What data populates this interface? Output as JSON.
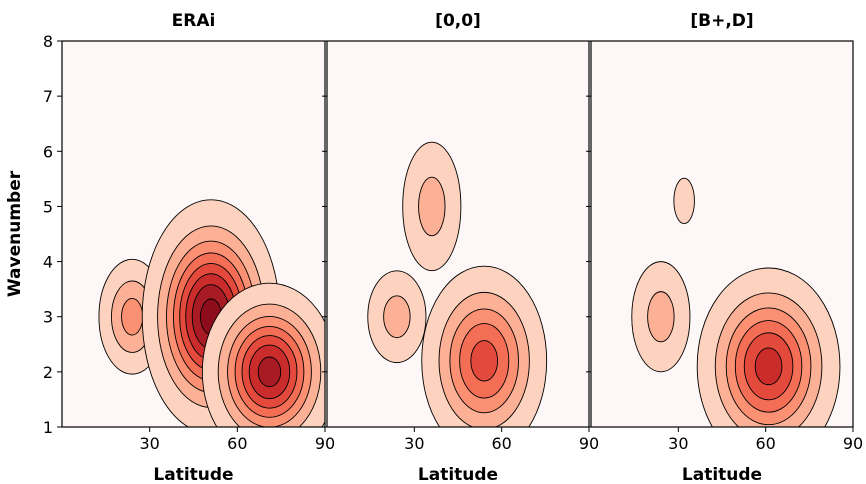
{
  "chart_data": [
    {
      "type": "contour",
      "title": "ERAi",
      "xlabel": "Latitude",
      "ylabel": "Wavenumber",
      "xlim": [
        0,
        90
      ],
      "ylim": [
        1,
        8
      ],
      "xticks": [
        "30",
        "60",
        "90"
      ],
      "yticks": [
        "1",
        "2",
        "3",
        "4",
        "5",
        "6",
        "7",
        "8"
      ],
      "peaks": [
        {
          "lat": 24,
          "wavenumber": 3.0,
          "levels": 3,
          "sx": 6,
          "sy": 0.55
        },
        {
          "lat": 51,
          "wavenumber": 3.0,
          "levels": 8,
          "sx": 10,
          "sy": 0.9
        },
        {
          "lat": 71,
          "wavenumber": 2.0,
          "levels": 7,
          "sx": 10,
          "sy": 0.7
        }
      ]
    },
    {
      "type": "contour",
      "title": "[0,0]",
      "xlabel": "Latitude",
      "ylabel": "",
      "xlim": [
        0,
        90
      ],
      "ylim": [
        1,
        8
      ],
      "xticks": [
        "30",
        "60",
        "90"
      ],
      "yticks": [],
      "peaks": [
        {
          "lat": 36,
          "wavenumber": 5.0,
          "levels": 2,
          "sx": 6,
          "sy": 0.7
        },
        {
          "lat": 24,
          "wavenumber": 3.0,
          "levels": 2,
          "sx": 6,
          "sy": 0.5
        },
        {
          "lat": 54,
          "wavenumber": 2.2,
          "levels": 5,
          "sx": 10,
          "sy": 0.8
        }
      ]
    },
    {
      "type": "contour",
      "title": "[B+,D]",
      "xlabel": "Latitude",
      "ylabel": "",
      "xlim": [
        0,
        90
      ],
      "ylim": [
        1,
        8
      ],
      "xticks": [
        "30",
        "60",
        "90"
      ],
      "yticks": [],
      "peaks": [
        {
          "lat": 32,
          "wavenumber": 5.1,
          "levels": 1,
          "sx": 3,
          "sy": 0.35
        },
        {
          "lat": 24,
          "wavenumber": 3.0,
          "levels": 2,
          "sx": 6,
          "sy": 0.6
        },
        {
          "lat": 61,
          "wavenumber": 2.1,
          "levels": 6,
          "sx": 11,
          "sy": 0.8
        }
      ]
    }
  ],
  "colors": {
    "background": "#fdf7f7",
    "levels": [
      "#fdd3c0",
      "#fcb196",
      "#fb9072",
      "#f46d55",
      "#e34a3c",
      "#c92c2b",
      "#a91b24",
      "#8e0d1c"
    ],
    "line": "#000000"
  }
}
